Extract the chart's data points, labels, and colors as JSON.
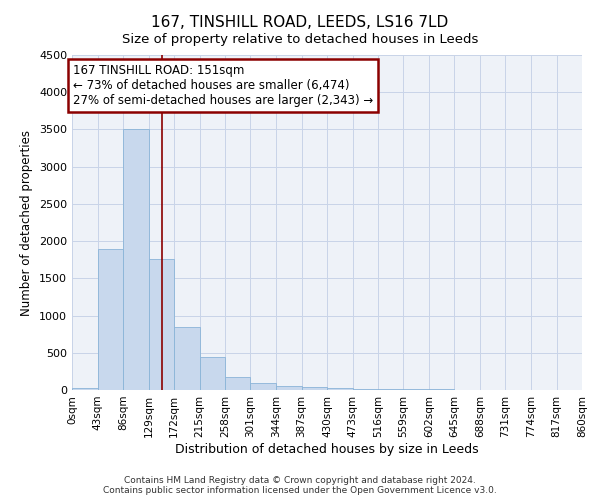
{
  "title": "167, TINSHILL ROAD, LEEDS, LS16 7LD",
  "subtitle": "Size of property relative to detached houses in Leeds",
  "xlabel": "Distribution of detached houses by size in Leeds",
  "ylabel": "Number of detached properties",
  "bin_edges": [
    0,
    43,
    86,
    129,
    172,
    215,
    258,
    301,
    344,
    387,
    430,
    473,
    516,
    559,
    602,
    645,
    688,
    731,
    774,
    817,
    860
  ],
  "bin_labels": [
    "0sqm",
    "43sqm",
    "86sqm",
    "129sqm",
    "172sqm",
    "215sqm",
    "258sqm",
    "301sqm",
    "344sqm",
    "387sqm",
    "430sqm",
    "473sqm",
    "516sqm",
    "559sqm",
    "602sqm",
    "645sqm",
    "688sqm",
    "731sqm",
    "774sqm",
    "817sqm",
    "860sqm"
  ],
  "counts": [
    30,
    1900,
    3500,
    1760,
    840,
    450,
    170,
    90,
    55,
    40,
    30,
    20,
    15,
    10,
    8,
    6,
    5,
    4,
    3,
    3
  ],
  "bar_color": "#c8d8ed",
  "bar_edge_color": "#8ab4d8",
  "property_size": 151,
  "vline_color": "#8b0000",
  "annotation_line1": "167 TINSHILL ROAD: 151sqm",
  "annotation_line2": "← 73% of detached houses are smaller (6,474)",
  "annotation_line3": "27% of semi-detached houses are larger (2,343) →",
  "annotation_box_color": "#8b0000",
  "ylim": [
    0,
    4500
  ],
  "yticks": [
    0,
    500,
    1000,
    1500,
    2000,
    2500,
    3000,
    3500,
    4000,
    4500
  ],
  "grid_color": "#c8d4e8",
  "background_color": "#eef2f8",
  "footer_line1": "Contains HM Land Registry data © Crown copyright and database right 2024.",
  "footer_line2": "Contains public sector information licensed under the Open Government Licence v3.0."
}
